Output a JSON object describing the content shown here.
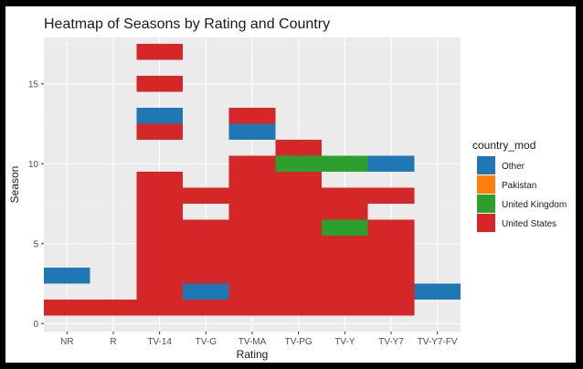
{
  "chart_data": {
    "type": "heatmap",
    "title": "Heatmap of Seasons by Rating and Country",
    "xlabel": "Rating",
    "ylabel": "Season",
    "categories": [
      "NR",
      "R",
      "TV-14",
      "TV-G",
      "TV-MA",
      "TV-PG",
      "TV-Y",
      "TV-Y7",
      "TV-Y7-FV"
    ],
    "y_ticks": [
      0,
      5,
      10,
      15
    ],
    "ylim": [
      -0.5,
      17.9
    ],
    "grid": true,
    "legend": {
      "title": "country_mod",
      "position": "right",
      "entries": [
        {
          "name": "Other",
          "color": "#1f77b4"
        },
        {
          "name": "Pakistan",
          "color": "#ff7f0e"
        },
        {
          "name": "United Kingdom",
          "color": "#2ca02c"
        },
        {
          "name": "United States",
          "color": "#d62728"
        }
      ]
    },
    "tiles": [
      {
        "x": "NR",
        "season": 1,
        "country": "United States"
      },
      {
        "x": "NR",
        "season": 3,
        "country": "Other"
      },
      {
        "x": "R",
        "season": 1,
        "country": "United States"
      },
      {
        "x": "TV-14",
        "season": 1,
        "country": "United States"
      },
      {
        "x": "TV-14",
        "season": 2,
        "country": "United States"
      },
      {
        "x": "TV-14",
        "season": 3,
        "country": "United States"
      },
      {
        "x": "TV-14",
        "season": 4,
        "country": "United States"
      },
      {
        "x": "TV-14",
        "season": 5,
        "country": "United States"
      },
      {
        "x": "TV-14",
        "season": 6,
        "country": "United States"
      },
      {
        "x": "TV-14",
        "season": 7,
        "country": "United States"
      },
      {
        "x": "TV-14",
        "season": 8,
        "country": "United States"
      },
      {
        "x": "TV-14",
        "season": 9,
        "country": "United States"
      },
      {
        "x": "TV-14",
        "season": 12,
        "country": "United States"
      },
      {
        "x": "TV-14",
        "season": 13,
        "country": "Other"
      },
      {
        "x": "TV-14",
        "season": 15,
        "country": "United States"
      },
      {
        "x": "TV-14",
        "season": 17,
        "country": "United States"
      },
      {
        "x": "TV-G",
        "season": 1,
        "country": "United States"
      },
      {
        "x": "TV-G",
        "season": 2,
        "country": "Other"
      },
      {
        "x": "TV-G",
        "season": 3,
        "country": "United States"
      },
      {
        "x": "TV-G",
        "season": 4,
        "country": "United States"
      },
      {
        "x": "TV-G",
        "season": 5,
        "country": "United States"
      },
      {
        "x": "TV-G",
        "season": 6,
        "country": "United States"
      },
      {
        "x": "TV-G",
        "season": 8,
        "country": "United States"
      },
      {
        "x": "TV-MA",
        "season": 1,
        "country": "United States"
      },
      {
        "x": "TV-MA",
        "season": 2,
        "country": "United States"
      },
      {
        "x": "TV-MA",
        "season": 3,
        "country": "United States"
      },
      {
        "x": "TV-MA",
        "season": 4,
        "country": "United States"
      },
      {
        "x": "TV-MA",
        "season": 5,
        "country": "United States"
      },
      {
        "x": "TV-MA",
        "season": 6,
        "country": "United States"
      },
      {
        "x": "TV-MA",
        "season": 7,
        "country": "United States"
      },
      {
        "x": "TV-MA",
        "season": 8,
        "country": "United States"
      },
      {
        "x": "TV-MA",
        "season": 9,
        "country": "United States"
      },
      {
        "x": "TV-MA",
        "season": 10,
        "country": "United States"
      },
      {
        "x": "TV-MA",
        "season": 12,
        "country": "Other"
      },
      {
        "x": "TV-MA",
        "season": 13,
        "country": "United States"
      },
      {
        "x": "TV-PG",
        "season": 1,
        "country": "United States"
      },
      {
        "x": "TV-PG",
        "season": 2,
        "country": "United States"
      },
      {
        "x": "TV-PG",
        "season": 3,
        "country": "United States"
      },
      {
        "x": "TV-PG",
        "season": 4,
        "country": "United States"
      },
      {
        "x": "TV-PG",
        "season": 5,
        "country": "United States"
      },
      {
        "x": "TV-PG",
        "season": 6,
        "country": "United States"
      },
      {
        "x": "TV-PG",
        "season": 7,
        "country": "United States"
      },
      {
        "x": "TV-PG",
        "season": 8,
        "country": "United States"
      },
      {
        "x": "TV-PG",
        "season": 9,
        "country": "United States"
      },
      {
        "x": "TV-PG",
        "season": 10,
        "country": "United Kingdom"
      },
      {
        "x": "TV-PG",
        "season": 11,
        "country": "United States"
      },
      {
        "x": "TV-Y",
        "season": 1,
        "country": "United States"
      },
      {
        "x": "TV-Y",
        "season": 2,
        "country": "United States"
      },
      {
        "x": "TV-Y",
        "season": 3,
        "country": "United States"
      },
      {
        "x": "TV-Y",
        "season": 4,
        "country": "United States"
      },
      {
        "x": "TV-Y",
        "season": 5,
        "country": "United States"
      },
      {
        "x": "TV-Y",
        "season": 6,
        "country": "United Kingdom"
      },
      {
        "x": "TV-Y",
        "season": 7,
        "country": "United States"
      },
      {
        "x": "TV-Y",
        "season": 8,
        "country": "United States"
      },
      {
        "x": "TV-Y",
        "season": 10,
        "country": "United Kingdom"
      },
      {
        "x": "TV-Y7",
        "season": 1,
        "country": "United States"
      },
      {
        "x": "TV-Y7",
        "season": 2,
        "country": "United States"
      },
      {
        "x": "TV-Y7",
        "season": 3,
        "country": "United States"
      },
      {
        "x": "TV-Y7",
        "season": 4,
        "country": "United States"
      },
      {
        "x": "TV-Y7",
        "season": 5,
        "country": "United States"
      },
      {
        "x": "TV-Y7",
        "season": 6,
        "country": "United States"
      },
      {
        "x": "TV-Y7",
        "season": 8,
        "country": "United States"
      },
      {
        "x": "TV-Y7",
        "season": 10,
        "country": "Other"
      },
      {
        "x": "TV-Y7-FV",
        "season": 2,
        "country": "Other"
      }
    ]
  }
}
